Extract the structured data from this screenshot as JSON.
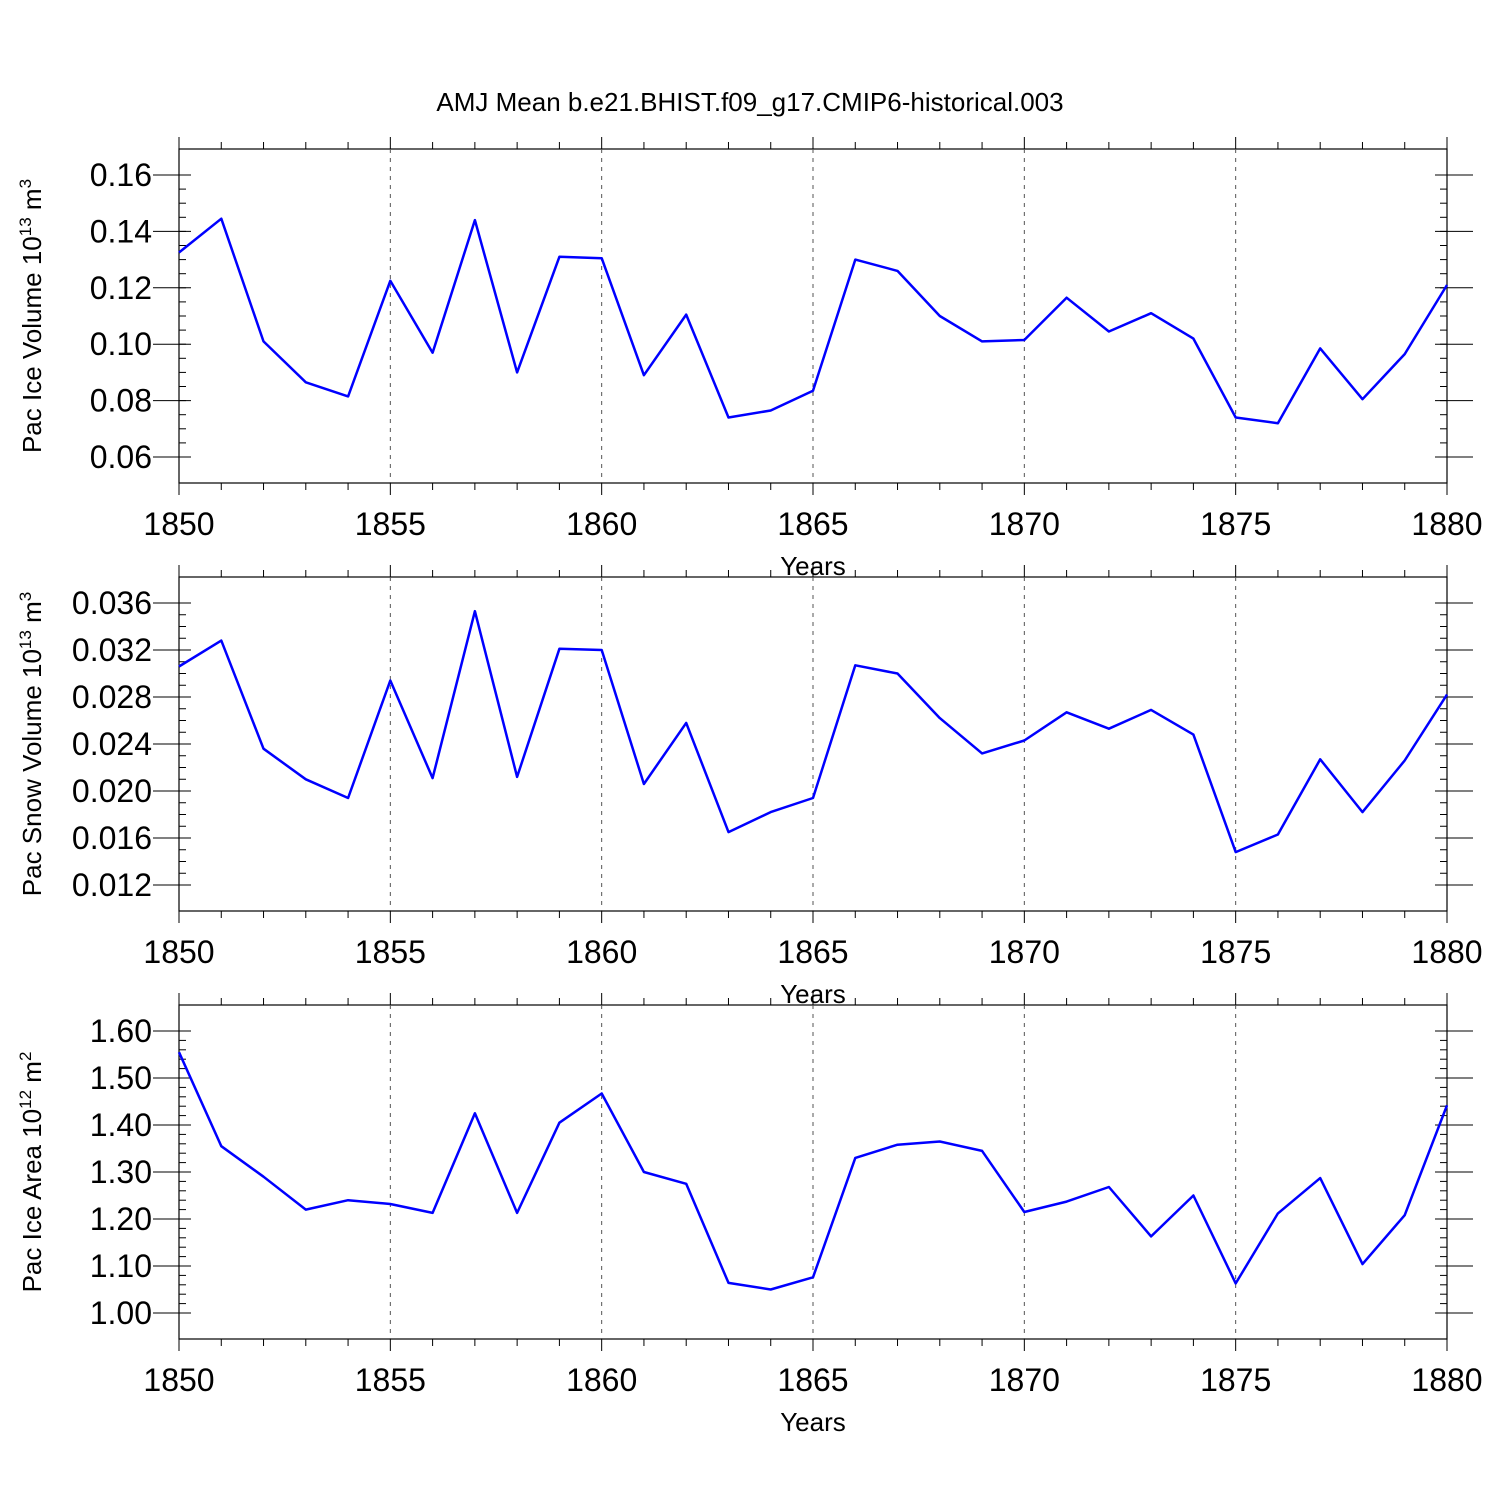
{
  "figure_title": "AMJ Mean b.e21.BHIST.f09_g17.CMIP6-historical.003",
  "colors": {
    "series": "#0000ff",
    "axes": "#000000"
  },
  "chart_data": [
    {
      "type": "line",
      "xlabel": "Years",
      "ylabel": "Pac Ice Volume 10",
      "ylabel_exp": "13",
      "ylabel_unit": "m",
      "ylabel_unit_exp": "3",
      "xlim": [
        1850,
        1880
      ],
      "ylim": [
        0.06,
        0.16
      ],
      "x_ticks": [
        1850,
        1855,
        1860,
        1865,
        1870,
        1875,
        1880
      ],
      "x_tick_labels": [
        "1850",
        "1855",
        "1860",
        "1865",
        "1870",
        "1875",
        "1880"
      ],
      "y_ticks": [
        0.06,
        0.08,
        0.1,
        0.12,
        0.14,
        0.16
      ],
      "y_tick_labels": [
        "0.06",
        "0.08",
        "0.10",
        "0.12",
        "0.14",
        "0.16"
      ],
      "y_minor_step": 0.005,
      "vertical_grid": "dashed at major x ticks",
      "x": [
        1850,
        1851,
        1852,
        1853,
        1854,
        1855,
        1856,
        1857,
        1858,
        1859,
        1860,
        1861,
        1862,
        1863,
        1864,
        1865,
        1866,
        1867,
        1868,
        1869,
        1870,
        1871,
        1872,
        1873,
        1874,
        1875,
        1876,
        1877,
        1878,
        1879,
        1880
      ],
      "values": [
        0.1325,
        0.1445,
        0.101,
        0.0865,
        0.0815,
        0.1225,
        0.097,
        0.144,
        0.09,
        0.131,
        0.1305,
        0.089,
        0.1105,
        0.074,
        0.0765,
        0.0835,
        0.13,
        0.126,
        0.11,
        0.101,
        0.1015,
        0.1165,
        0.1045,
        0.111,
        0.102,
        0.074,
        0.072,
        0.0985,
        0.0805,
        0.0965,
        0.121
      ]
    },
    {
      "type": "line",
      "xlabel": "Years",
      "ylabel": "Pac Snow Volume 10",
      "ylabel_exp": "13",
      "ylabel_unit": "m",
      "ylabel_unit_exp": "3",
      "xlim": [
        1850,
        1880
      ],
      "ylim": [
        0.012,
        0.036
      ],
      "x_ticks": [
        1850,
        1855,
        1860,
        1865,
        1870,
        1875,
        1880
      ],
      "x_tick_labels": [
        "1850",
        "1855",
        "1860",
        "1865",
        "1870",
        "1875",
        "1880"
      ],
      "y_ticks": [
        0.012,
        0.016,
        0.02,
        0.024,
        0.028,
        0.032,
        0.036
      ],
      "y_tick_labels": [
        "0.012",
        "0.016",
        "0.020",
        "0.024",
        "0.028",
        "0.032",
        "0.036"
      ],
      "y_minor_step": 0.001,
      "vertical_grid": "dashed at major x ticks",
      "x": [
        1850,
        1851,
        1852,
        1853,
        1854,
        1855,
        1856,
        1857,
        1858,
        1859,
        1860,
        1861,
        1862,
        1863,
        1864,
        1865,
        1866,
        1867,
        1868,
        1869,
        1870,
        1871,
        1872,
        1873,
        1874,
        1875,
        1876,
        1877,
        1878,
        1879,
        1880
      ],
      "values": [
        0.0306,
        0.0328,
        0.0236,
        0.021,
        0.0194,
        0.0294,
        0.0211,
        0.0353,
        0.0212,
        0.0321,
        0.032,
        0.0206,
        0.0258,
        0.0165,
        0.0182,
        0.0194,
        0.0307,
        0.03,
        0.0262,
        0.0232,
        0.0243,
        0.0267,
        0.0253,
        0.0269,
        0.0248,
        0.0148,
        0.0163,
        0.0227,
        0.0182,
        0.0226,
        0.0282
      ]
    },
    {
      "type": "line",
      "xlabel": "Years",
      "ylabel": "Pac Ice Area 10",
      "ylabel_exp": "12",
      "ylabel_unit": "m",
      "ylabel_unit_exp": "2",
      "xlim": [
        1850,
        1880
      ],
      "ylim": [
        1.0,
        1.6
      ],
      "x_ticks": [
        1850,
        1855,
        1860,
        1865,
        1870,
        1875,
        1880
      ],
      "x_tick_labels": [
        "1850",
        "1855",
        "1860",
        "1865",
        "1870",
        "1875",
        "1880"
      ],
      "y_ticks": [
        1.0,
        1.1,
        1.2,
        1.3,
        1.4,
        1.5,
        1.6
      ],
      "y_tick_labels": [
        "1.00",
        "1.10",
        "1.20",
        "1.30",
        "1.40",
        "1.50",
        "1.60"
      ],
      "y_minor_step": 0.02,
      "vertical_grid": "dashed at major x ticks",
      "x": [
        1850,
        1851,
        1852,
        1853,
        1854,
        1855,
        1856,
        1857,
        1858,
        1859,
        1860,
        1861,
        1862,
        1863,
        1864,
        1865,
        1866,
        1867,
        1868,
        1869,
        1870,
        1871,
        1872,
        1873,
        1874,
        1875,
        1876,
        1877,
        1878,
        1879,
        1880
      ],
      "values": [
        1.555,
        1.355,
        1.29,
        1.22,
        1.24,
        1.232,
        1.213,
        1.425,
        1.213,
        1.405,
        1.467,
        1.3,
        1.275,
        1.064,
        1.05,
        1.076,
        1.33,
        1.358,
        1.365,
        1.345,
        1.215,
        1.237,
        1.268,
        1.163,
        1.25,
        1.063,
        1.212,
        1.287,
        1.104,
        1.208,
        1.442
      ]
    }
  ]
}
